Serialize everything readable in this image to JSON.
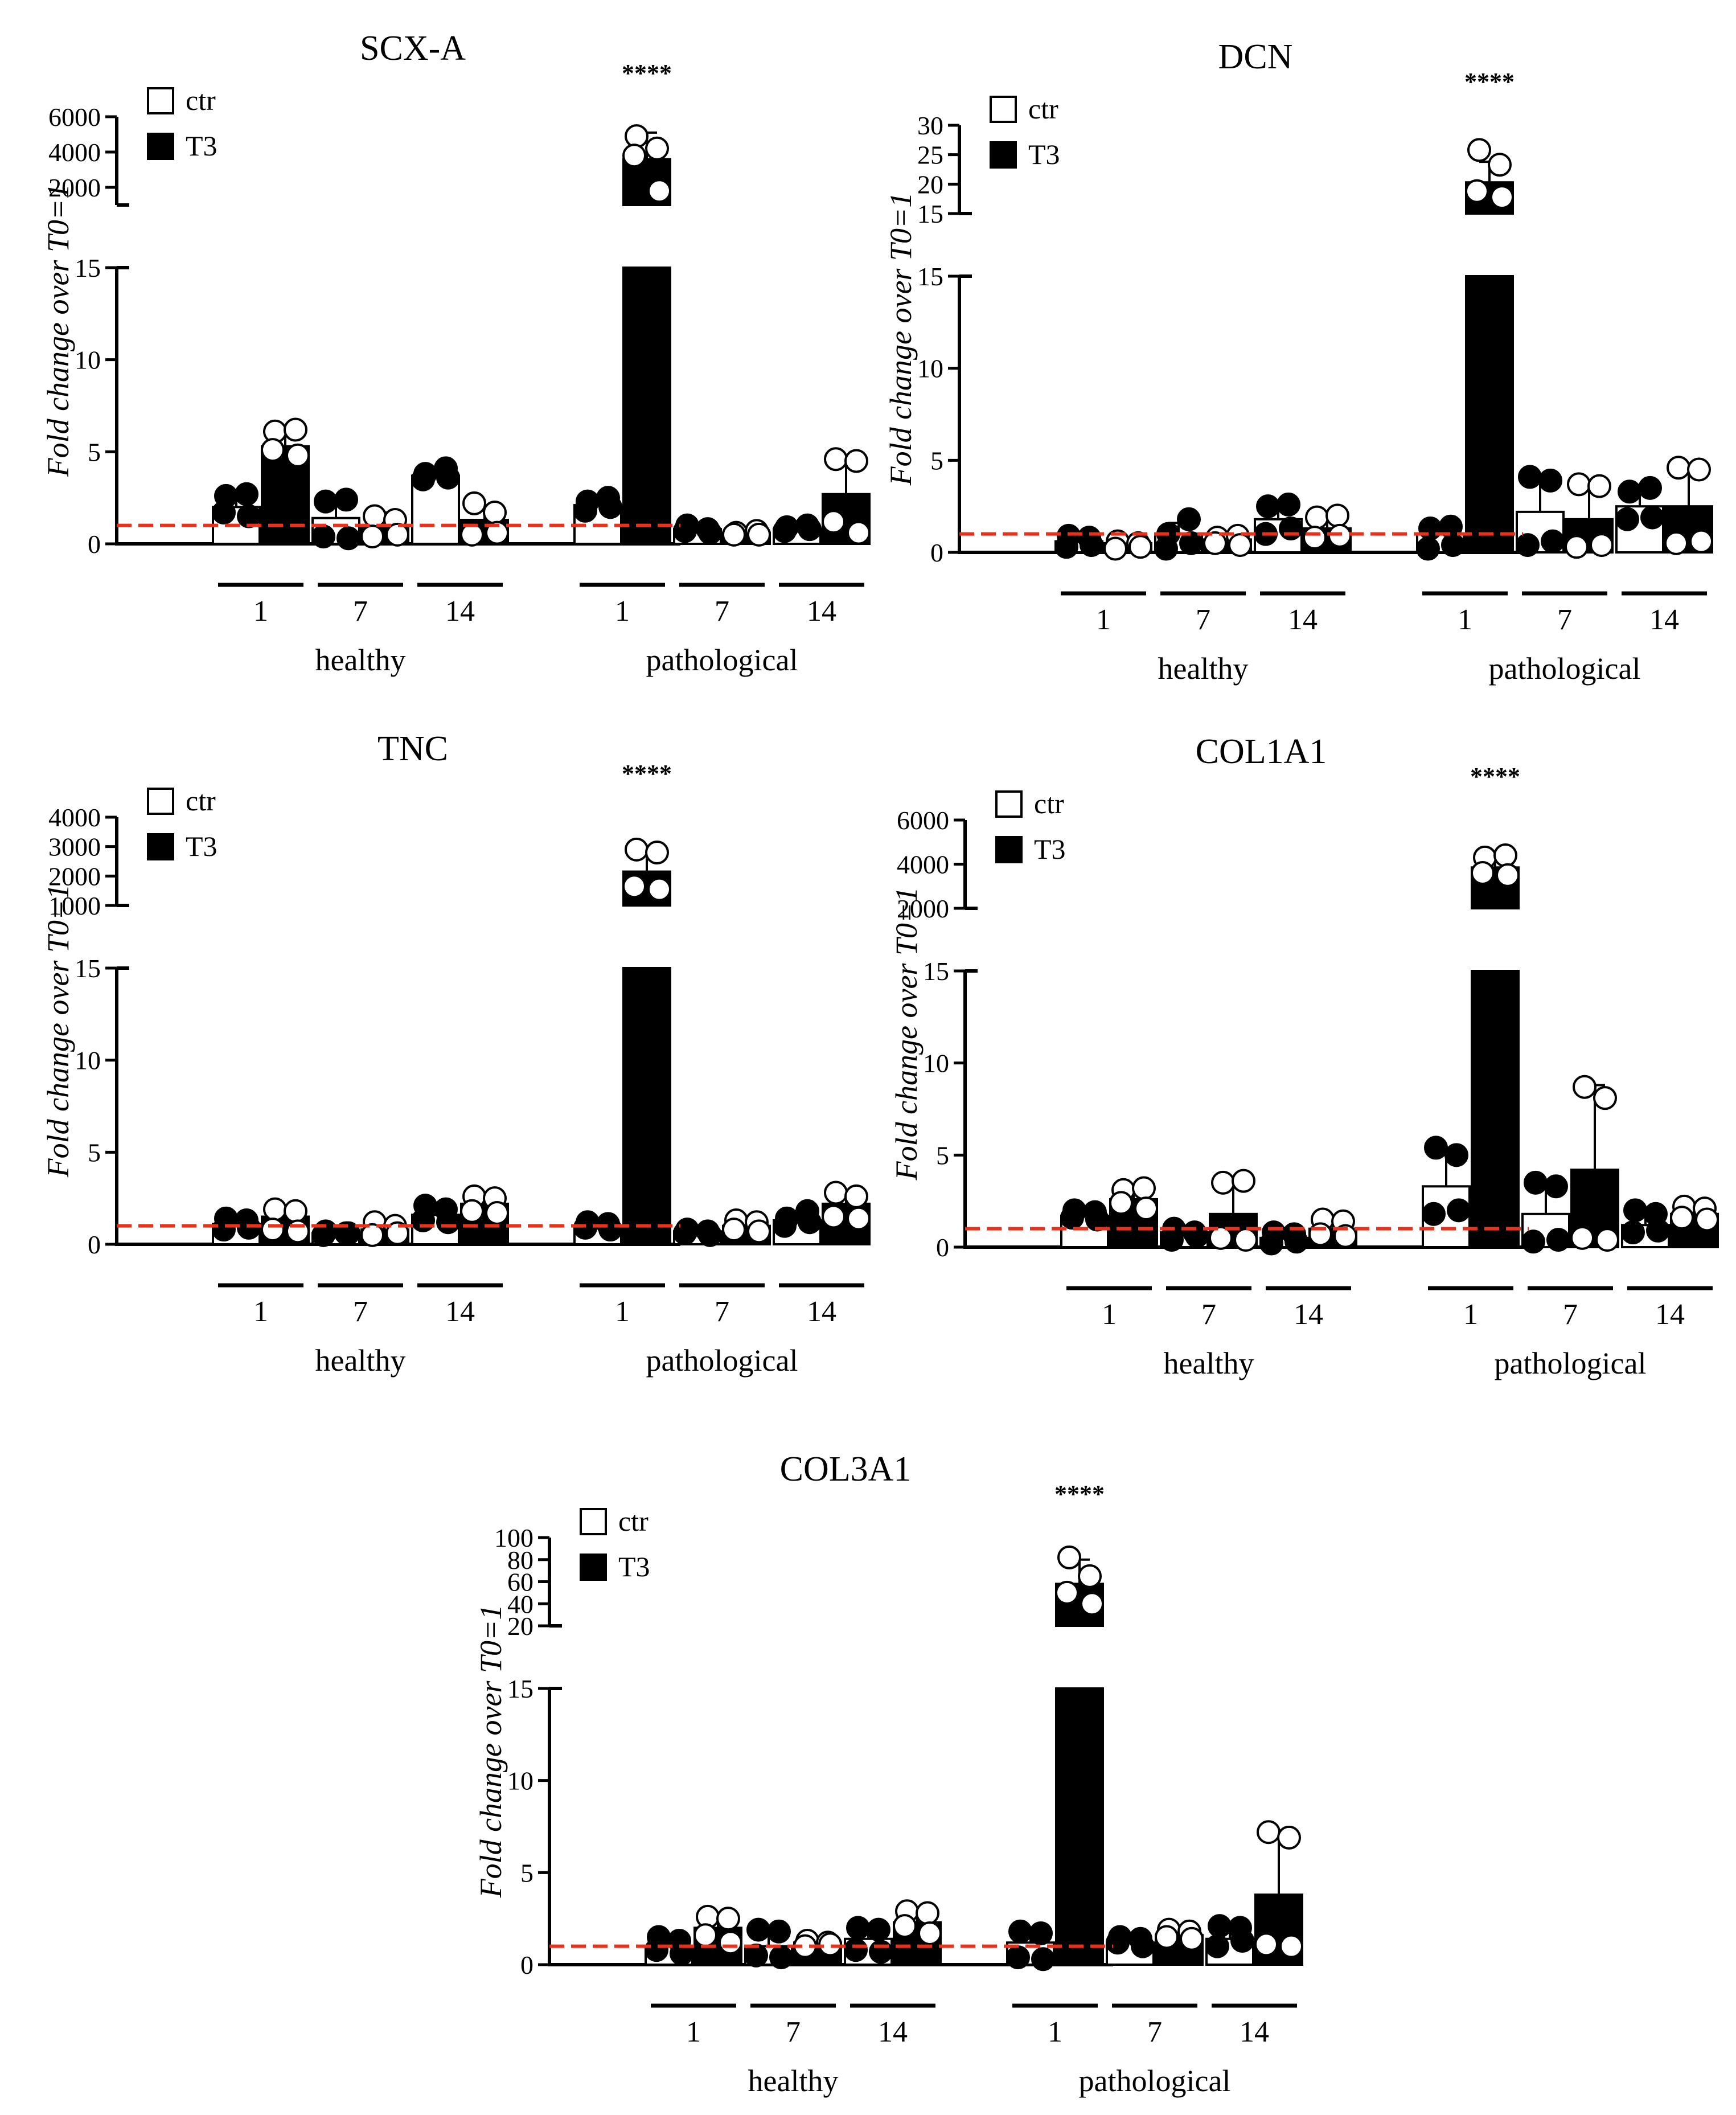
{
  "figure": {
    "y_axis_label": "Fold change over T0=1",
    "legend": {
      "ctr_label": "ctr",
      "t3_label": "T3"
    },
    "groups": [
      "healthy",
      "pathological"
    ],
    "timepoints": [
      "1",
      "7",
      "14"
    ],
    "significance_label": "****",
    "reference_line": {
      "value": 1,
      "color": "#e8331c"
    },
    "colors": {
      "ctr_fill": "#ffffff",
      "t3_fill": "#000000",
      "axis": "#000000"
    }
  },
  "chart_data": [
    {
      "type": "bar",
      "title": "SCX-A",
      "ylabel": "Fold change over T0=1",
      "lower_axis": {
        "ylim": [
          0,
          15
        ],
        "ticks": [
          "0",
          "5",
          "10",
          "15"
        ]
      },
      "upper_axis": {
        "ylim": [
          1000,
          6000
        ],
        "ticks": [
          "2000",
          "4000",
          "6000"
        ]
      },
      "legend": [
        "ctr",
        "T3"
      ],
      "categories": [
        "healthy 1",
        "healthy 7",
        "healthy 14",
        "pathological 1",
        "pathological 7",
        "pathological 14"
      ],
      "series": [
        {
          "name": "ctr",
          "values": [
            2.0,
            1.4,
            3.7,
            2.1,
            0.8,
            0.8
          ],
          "sd": [
            0.5,
            1.0,
            0.3,
            0.3,
            0.2,
            0.1
          ],
          "points": [
            [
              2.6,
              2.7,
              1.7,
              1.5
            ],
            [
              2.3,
              2.4,
              0.4,
              0.3
            ],
            [
              3.8,
              4.1,
              3.5,
              3.6
            ],
            [
              2.3,
              2.5,
              1.8,
              2.0
            ],
            [
              1.0,
              0.8,
              0.7,
              0.6
            ],
            [
              0.9,
              1.0,
              0.7,
              0.8
            ]
          ]
        },
        {
          "name": "T3",
          "values": [
            5.3,
            1.0,
            1.3,
            3600,
            0.6,
            2.7
          ],
          "sd": [
            0.8,
            0.7,
            0.8,
            1500,
            0.1,
            2.0
          ],
          "points": [
            [
              6.1,
              6.2,
              5.1,
              4.8
            ],
            [
              1.5,
              1.3,
              0.4,
              0.5
            ],
            [
              2.2,
              1.7,
              0.5,
              0.6
            ],
            [
              4900,
              4200,
              3800,
              1800
            ],
            [
              0.6,
              0.7,
              0.5,
              0.5
            ],
            [
              4.6,
              4.5,
              1.2,
              0.6
            ]
          ]
        }
      ],
      "significance": {
        "category": "pathological 1",
        "label": "****"
      }
    },
    {
      "type": "bar",
      "title": "DCN",
      "ylabel": "Fold change over T0=1",
      "lower_axis": {
        "ylim": [
          0,
          15
        ],
        "ticks": [
          "0",
          "5",
          "10",
          "15"
        ]
      },
      "upper_axis": {
        "ylim": [
          15,
          30
        ],
        "ticks": [
          "15",
          "20",
          "25",
          "30"
        ]
      },
      "legend": [
        "ctr",
        "T3"
      ],
      "categories": [
        "healthy 1",
        "healthy 7",
        "healthy 14",
        "pathological 1",
        "pathological 7",
        "pathological 14"
      ],
      "series": [
        {
          "name": "ctr",
          "values": [
            0.6,
            1.0,
            1.8,
            1.0,
            2.2,
            2.5
          ],
          "sd": [
            0.3,
            0.6,
            0.9,
            0.5,
            2.0,
            1.0
          ],
          "points": [
            [
              0.9,
              0.8,
              0.3,
              0.4
            ],
            [
              1.0,
              1.8,
              0.2,
              0.5
            ],
            [
              2.5,
              2.6,
              1.0,
              1.3
            ],
            [
              1.3,
              1.4,
              0.2,
              0.4
            ],
            [
              4.1,
              3.9,
              0.4,
              0.6
            ],
            [
              3.3,
              3.5,
              1.8,
              1.9
            ]
          ]
        },
        {
          "name": "T3",
          "values": [
            0.5,
            0.7,
            1.3,
            20.3,
            1.8,
            2.5
          ],
          "sd": [
            0.3,
            0.3,
            0.6,
            3.5,
            1.8,
            2.3
          ],
          "points": [
            [
              0.6,
              0.5,
              0.2,
              0.3
            ],
            [
              0.8,
              0.9,
              0.5,
              0.4
            ],
            [
              1.9,
              2.0,
              0.8,
              0.9
            ],
            [
              25.8,
              23.3,
              18.8,
              17.8
            ],
            [
              3.7,
              3.6,
              0.3,
              0.4
            ],
            [
              4.6,
              4.5,
              0.5,
              0.6
            ]
          ]
        }
      ],
      "significance": {
        "category": "pathological 1",
        "label": "****"
      }
    },
    {
      "type": "bar",
      "title": "TNC",
      "ylabel": "Fold change over T0=1",
      "lower_axis": {
        "ylim": [
          0,
          15
        ],
        "ticks": [
          "0",
          "5",
          "10",
          "15"
        ]
      },
      "upper_axis": {
        "ylim": [
          1000,
          4000
        ],
        "ticks": [
          "1000",
          "2000",
          "3000",
          "4000"
        ]
      },
      "legend": [
        "ctr",
        "T3"
      ],
      "categories": [
        "healthy 1",
        "healthy 7",
        "healthy 14",
        "pathological 1",
        "pathological 7",
        "pathological 14"
      ],
      "series": [
        {
          "name": "ctr",
          "values": [
            1.1,
            0.6,
            1.6,
            1.0,
            0.7,
            1.3
          ],
          "sd": [
            0.3,
            0.2,
            0.4,
            0.2,
            0.2,
            0.3
          ],
          "points": [
            [
              1.4,
              1.3,
              0.8,
              0.9
            ],
            [
              0.7,
              0.6,
              0.5,
              0.6
            ],
            [
              2.1,
              1.9,
              1.3,
              1.2
            ],
            [
              1.2,
              1.1,
              0.9,
              0.8
            ],
            [
              0.8,
              0.7,
              0.6,
              0.5
            ],
            [
              1.4,
              1.8,
              1.0,
              1.2
            ]
          ]
        },
        {
          "name": "T3",
          "values": [
            1.5,
            0.8,
            2.2,
            2150,
            1.0,
            2.2
          ],
          "sd": [
            0.5,
            0.3,
            0.5,
            750,
            0.3,
            0.7
          ],
          "points": [
            [
              1.9,
              1.8,
              0.8,
              0.7
            ],
            [
              1.2,
              1.0,
              0.5,
              0.6
            ],
            [
              2.6,
              2.5,
              1.8,
              1.7
            ],
            [
              2900,
              2800,
              1650,
              1550
            ],
            [
              1.3,
              1.2,
              0.8,
              0.7
            ],
            [
              2.8,
              2.6,
              1.5,
              1.4
            ]
          ]
        }
      ],
      "significance": {
        "category": "pathological 1",
        "label": "****"
      }
    },
    {
      "type": "bar",
      "title": "COL1A1",
      "ylabel": "Fold change over T0=1",
      "lower_axis": {
        "ylim": [
          0,
          15
        ],
        "ticks": [
          "0",
          "5",
          "10",
          "15"
        ]
      },
      "upper_axis": {
        "ylim": [
          2000,
          6000
        ],
        "ticks": [
          "2000",
          "4000",
          "6000"
        ]
      },
      "legend": [
        "ctr",
        "T3"
      ],
      "categories": [
        "healthy 1",
        "healthy 7",
        "healthy 14",
        "pathological 1",
        "pathological 7",
        "pathological 14"
      ],
      "series": [
        {
          "name": "ctr",
          "values": [
            1.7,
            0.8,
            0.5,
            3.3,
            1.8,
            1.2
          ],
          "sd": [
            0.2,
            0.3,
            0.3,
            2.0,
            1.8,
            0.7
          ],
          "points": [
            [
              2.0,
              1.9,
              1.6,
              1.5
            ],
            [
              1.0,
              0.8,
              0.4,
              0.6
            ],
            [
              0.8,
              0.7,
              0.2,
              0.3
            ],
            [
              5.4,
              5.0,
              1.8,
              2.0
            ],
            [
              3.5,
              3.3,
              0.3,
              0.4
            ],
            [
              2.0,
              1.8,
              0.8,
              0.9
            ]
          ]
        },
        {
          "name": "T3",
          "values": [
            2.6,
            1.8,
            1.0,
            3850,
            4.2,
            1.8
          ],
          "sd": [
            0.6,
            1.8,
            0.5,
            500,
            4.6,
            0.5
          ],
          "points": [
            [
              3.1,
              3.2,
              2.4,
              2.1
            ],
            [
              3.5,
              3.6,
              0.5,
              0.4
            ],
            [
              1.5,
              1.4,
              0.7,
              0.6
            ],
            [
              4300,
              4400,
              3600,
              3500
            ],
            [
              8.7,
              8.1,
              0.5,
              0.4
            ],
            [
              2.2,
              2.1,
              1.6,
              1.5
            ]
          ]
        }
      ],
      "significance": {
        "category": "pathological 1",
        "label": "****"
      }
    },
    {
      "type": "bar",
      "title": "COL3A1",
      "ylabel": "Fold change over T0=1",
      "lower_axis": {
        "ylim": [
          0,
          15
        ],
        "ticks": [
          "0",
          "5",
          "10",
          "15"
        ]
      },
      "upper_axis": {
        "ylim": [
          20,
          100
        ],
        "ticks": [
          "20",
          "40",
          "60",
          "80",
          "100"
        ]
      },
      "legend": [
        "ctr",
        "T3"
      ],
      "categories": [
        "healthy 1",
        "healthy 7",
        "healthy 14",
        "pathological 1",
        "pathological 7",
        "pathological 14"
      ],
      "series": [
        {
          "name": "ctr",
          "values": [
            1.0,
            1.0,
            1.4,
            1.2,
            1.2,
            1.4
          ],
          "sd": [
            0.3,
            0.6,
            0.6,
            0.6,
            0.3,
            0.6
          ],
          "points": [
            [
              1.5,
              1.3,
              0.8,
              0.6
            ],
            [
              1.9,
              1.8,
              0.5,
              0.4
            ],
            [
              2.0,
              1.9,
              0.8,
              0.7
            ],
            [
              1.8,
              1.7,
              0.4,
              0.3
            ],
            [
              1.5,
              1.4,
              1.2,
              1.0
            ],
            [
              2.1,
              2.0,
              1.0,
              1.3
            ]
          ]
        },
        {
          "name": "T3",
          "values": [
            2.0,
            1.2,
            2.3,
            58,
            1.6,
            3.8
          ],
          "sd": [
            0.6,
            0.3,
            0.6,
            22,
            0.3,
            3.4
          ],
          "points": [
            [
              2.6,
              2.5,
              1.6,
              1.2
            ],
            [
              1.3,
              1.2,
              1.0,
              1.1
            ],
            [
              2.9,
              2.8,
              2.1,
              1.7
            ],
            [
              82,
              65,
              50,
              40
            ],
            [
              1.9,
              1.8,
              1.5,
              1.4
            ],
            [
              7.2,
              6.9,
              1.1,
              1.0
            ]
          ]
        }
      ],
      "significance": {
        "category": "pathological 1",
        "label": "****"
      }
    }
  ]
}
